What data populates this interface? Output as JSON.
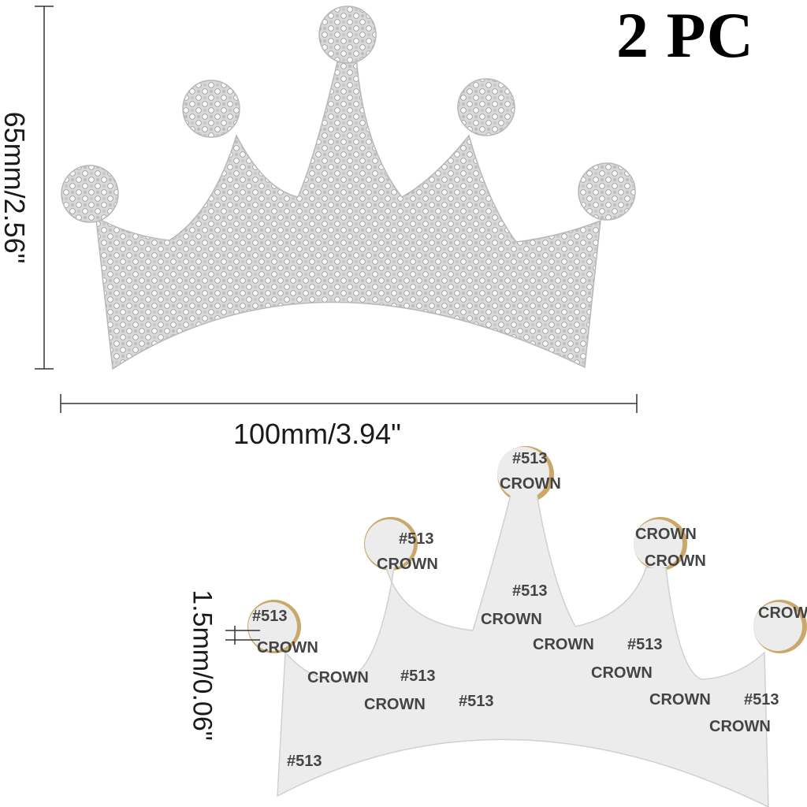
{
  "quantity_label": "2 PC",
  "dimensions": {
    "height": "65mm/2.56\"",
    "width": "100mm/3.94\"",
    "thickness": "1.5mm/0.06\""
  },
  "backing_text": {
    "code": "#513",
    "word": "CROWN"
  },
  "colors": {
    "rhinestone_base": "#d8d8d8",
    "backing": "#ececec",
    "backing_text": "#444444",
    "adhesive_edge": "#c9a86a"
  }
}
